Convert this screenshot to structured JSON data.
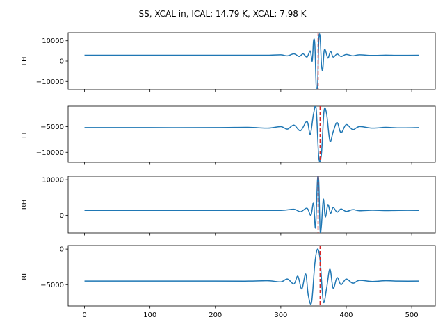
{
  "chart_data": {
    "type": "line",
    "title": "SS, XCAL in, ICAL: 14.79 K, XCAL: 7.98 K",
    "x_ticks": [
      0,
      100,
      200,
      300,
      400,
      500
    ],
    "xlim": [
      -25,
      536
    ],
    "series_color": "#1f77b4",
    "marker_color": "#d62728",
    "panels": [
      {
        "ylabel": "LH",
        "ylim": [
          -14000,
          14000
        ],
        "y_ticks": [
          10000,
          0,
          -10000
        ],
        "y_tick_labels": [
          "10000",
          "0",
          "−10000"
        ],
        "x": [
          0,
          100,
          200,
          250,
          280,
          300,
          310,
          320,
          328,
          334,
          340,
          345,
          348,
          350,
          352,
          354,
          356,
          358,
          360,
          362,
          364,
          366,
          368,
          372,
          376,
          380,
          386,
          392,
          400,
          410,
          420,
          440,
          460,
          480,
          511
        ],
        "values": [
          2900,
          2900,
          2900,
          2900,
          2900,
          3100,
          2600,
          3600,
          2300,
          3600,
          2000,
          5000,
          0,
          10000,
          8000,
          -12000,
          -14000,
          10000,
          12000,
          -1000,
          -4500,
          4500,
          5500,
          1500,
          4800,
          2000,
          3500,
          2300,
          3300,
          2600,
          3100,
          2800,
          2950,
          2850,
          2900
        ],
        "marker_x": 357
      },
      {
        "ylabel": "LL",
        "ylim": [
          -12000,
          -1000
        ],
        "y_ticks": [
          -5000,
          -10000
        ],
        "y_tick_labels": [
          "−5000",
          "−10000"
        ],
        "x": [
          0,
          100,
          200,
          250,
          280,
          300,
          310,
          320,
          330,
          340,
          345,
          350,
          354,
          358,
          362,
          366,
          370,
          375,
          380,
          386,
          392,
          400,
          410,
          420,
          440,
          460,
          480,
          511
        ],
        "values": [
          -5200,
          -5200,
          -5200,
          -5150,
          -5300,
          -5000,
          -5500,
          -4700,
          -5800,
          -4000,
          -6500,
          -2500,
          -1500,
          -11000,
          -10500,
          -2000,
          -2500,
          -7800,
          -6000,
          -4200,
          -6200,
          -4600,
          -5600,
          -5000,
          -5300,
          -5150,
          -5250,
          -5200
        ],
        "marker_x": 360
      },
      {
        "ylabel": "RH",
        "ylim": [
          -5000,
          11000
        ],
        "y_ticks": [
          10000,
          0
        ],
        "y_tick_labels": [
          "10000",
          "0"
        ],
        "x": [
          0,
          100,
          200,
          250,
          300,
          320,
          330,
          340,
          346,
          350,
          353,
          356,
          358,
          360,
          362,
          365,
          368,
          372,
          376,
          380,
          386,
          392,
          400,
          410,
          420,
          440,
          460,
          480,
          511
        ],
        "values": [
          1400,
          1400,
          1400,
          1400,
          1400,
          1700,
          1000,
          2000,
          0,
          3500,
          -3500,
          10000,
          9500,
          -4000,
          -3000,
          4500,
          -500,
          3000,
          600,
          2200,
          900,
          1800,
          1100,
          1600,
          1300,
          1450,
          1350,
          1400,
          1400
        ],
        "marker_x": 357
      },
      {
        "ylabel": "RL",
        "ylim": [
          -8000,
          500
        ],
        "y_ticks": [
          0,
          -5000
        ],
        "y_tick_labels": [
          "0",
          "−5000"
        ],
        "x": [
          0,
          100,
          200,
          250,
          280,
          300,
          310,
          320,
          326,
          332,
          338,
          342,
          347,
          352,
          356,
          360,
          365,
          370,
          375,
          380,
          386,
          392,
          400,
          410,
          420,
          440,
          460,
          480,
          511
        ],
        "values": [
          -4500,
          -4500,
          -4500,
          -4500,
          -4450,
          -4600,
          -4200,
          -4900,
          -3800,
          -5600,
          -3500,
          -6500,
          -7500,
          -2000,
          0,
          -1500,
          -7400,
          -5500,
          -2800,
          -5500,
          -4000,
          -5000,
          -4200,
          -4800,
          -4400,
          -4550,
          -4450,
          -4500,
          -4500
        ],
        "marker_x": 360
      }
    ]
  }
}
